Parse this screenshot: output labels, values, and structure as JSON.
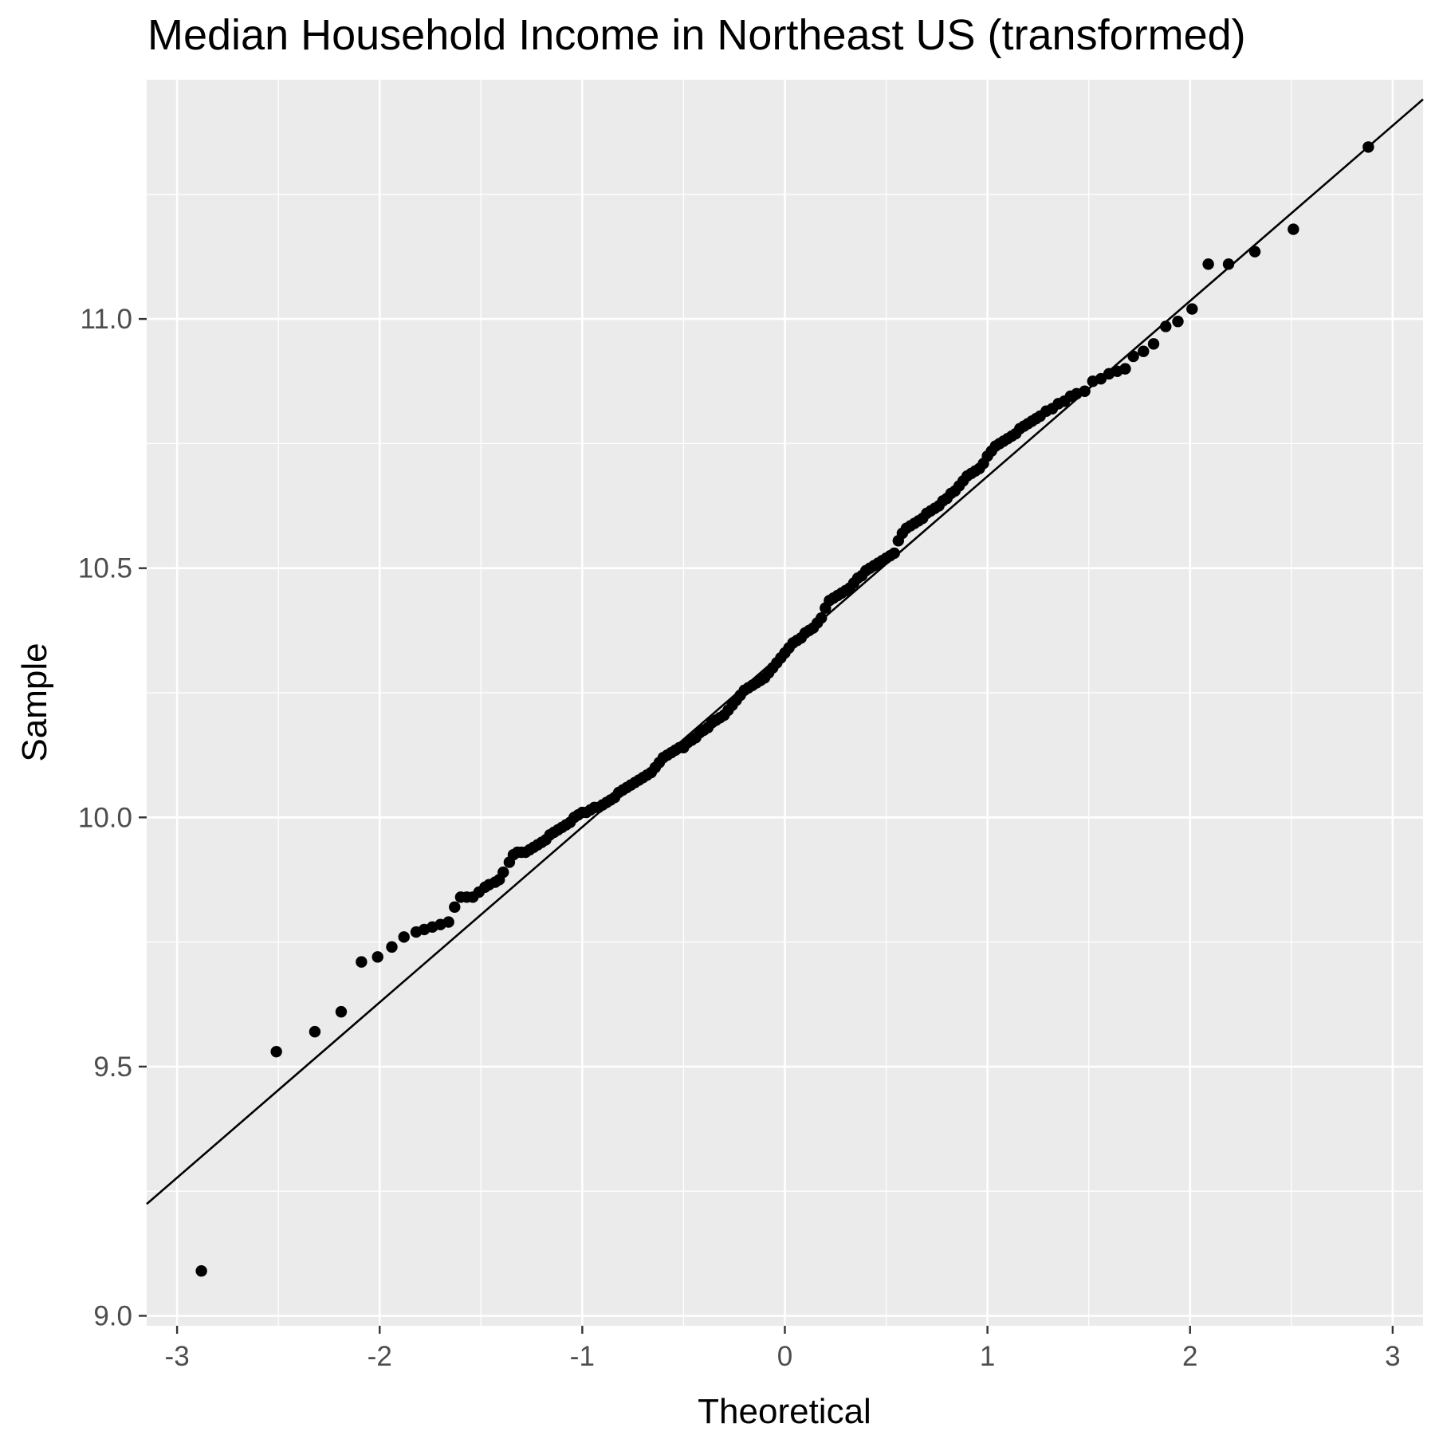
{
  "chart_data": {
    "type": "scatter",
    "title": "Median Household Income in Northeast US (transformed)",
    "xlabel": "Theoretical",
    "ylabel": "Sample",
    "xlim": [
      -3.15,
      3.15
    ],
    "ylim": [
      8.98,
      11.48
    ],
    "x_ticks": [
      -3,
      -2,
      -1,
      0,
      1,
      2,
      3
    ],
    "x_tick_labels": [
      "-3",
      "-2",
      "-1",
      "0",
      "1",
      "2",
      "3"
    ],
    "y_ticks": [
      9.0,
      9.5,
      10.0,
      10.5,
      11.0
    ],
    "y_tick_labels": [
      "9.0",
      "9.5",
      "10.0",
      "10.5",
      "11.0"
    ],
    "grid": true,
    "panel_background": "#ebebeb",
    "grid_color": "#ffffff",
    "point_color": "#000000",
    "reference_line": {
      "slope": 0.3518,
      "intercept": 10.3325
    },
    "series": [
      {
        "points": [
          [
            -2.88,
            9.09
          ],
          [
            -2.51,
            9.53
          ],
          [
            -2.32,
            9.57
          ],
          [
            -2.19,
            9.61
          ],
          [
            -2.09,
            9.71
          ],
          [
            -2.01,
            9.72
          ],
          [
            -1.94,
            9.74
          ],
          [
            -1.88,
            9.76
          ],
          [
            -1.82,
            9.77
          ],
          [
            -1.78,
            9.775
          ],
          [
            -1.74,
            9.78
          ],
          [
            -1.7,
            9.785
          ],
          [
            -1.66,
            9.79
          ],
          [
            -1.63,
            9.82
          ],
          [
            -1.6,
            9.84
          ],
          [
            -1.57,
            9.84
          ],
          [
            -1.54,
            9.84
          ],
          [
            -1.51,
            9.85
          ],
          [
            -1.48,
            9.86
          ],
          [
            -1.46,
            9.865
          ],
          [
            -1.43,
            9.87
          ],
          [
            -1.41,
            9.875
          ],
          [
            -1.39,
            9.89
          ],
          [
            -1.36,
            9.91
          ],
          [
            -1.34,
            9.925
          ],
          [
            -1.32,
            9.93
          ],
          [
            -1.3,
            9.93
          ],
          [
            -1.28,
            9.93
          ],
          [
            -1.26,
            9.935
          ],
          [
            -1.24,
            9.94
          ],
          [
            -1.22,
            9.945
          ],
          [
            -1.2,
            9.95
          ],
          [
            -1.18,
            9.955
          ],
          [
            -1.16,
            9.965
          ],
          [
            -1.14,
            9.97
          ],
          [
            -1.12,
            9.975
          ],
          [
            -1.1,
            9.98
          ],
          [
            -1.08,
            9.985
          ],
          [
            -1.06,
            9.99
          ],
          [
            -1.04,
            10.0
          ],
          [
            -1.02,
            10.005
          ],
          [
            -1.0,
            10.01
          ],
          [
            -0.98,
            10.01
          ],
          [
            -0.96,
            10.015
          ],
          [
            -0.94,
            10.02
          ],
          [
            -0.92,
            10.02
          ],
          [
            -0.9,
            10.025
          ],
          [
            -0.88,
            10.03
          ],
          [
            -0.86,
            10.035
          ],
          [
            -0.84,
            10.04
          ],
          [
            -0.82,
            10.05
          ],
          [
            -0.8,
            10.055
          ],
          [
            -0.78,
            10.06
          ],
          [
            -0.76,
            10.065
          ],
          [
            -0.74,
            10.07
          ],
          [
            -0.72,
            10.075
          ],
          [
            -0.7,
            10.08
          ],
          [
            -0.68,
            10.085
          ],
          [
            -0.66,
            10.09
          ],
          [
            -0.64,
            10.1
          ],
          [
            -0.62,
            10.11
          ],
          [
            -0.6,
            10.12
          ],
          [
            -0.58,
            10.125
          ],
          [
            -0.56,
            10.13
          ],
          [
            -0.54,
            10.135
          ],
          [
            -0.52,
            10.14
          ],
          [
            -0.5,
            10.14
          ],
          [
            -0.48,
            10.15
          ],
          [
            -0.46,
            10.155
          ],
          [
            -0.44,
            10.16
          ],
          [
            -0.42,
            10.17
          ],
          [
            -0.4,
            10.175
          ],
          [
            -0.38,
            10.18
          ],
          [
            -0.36,
            10.19
          ],
          [
            -0.34,
            10.195
          ],
          [
            -0.32,
            10.2
          ],
          [
            -0.3,
            10.205
          ],
          [
            -0.28,
            10.215
          ],
          [
            -0.26,
            10.225
          ],
          [
            -0.24,
            10.235
          ],
          [
            -0.22,
            10.245
          ],
          [
            -0.2,
            10.255
          ],
          [
            -0.18,
            10.26
          ],
          [
            -0.16,
            10.265
          ],
          [
            -0.14,
            10.27
          ],
          [
            -0.12,
            10.275
          ],
          [
            -0.1,
            10.28
          ],
          [
            -0.08,
            10.29
          ],
          [
            -0.06,
            10.3
          ],
          [
            -0.04,
            10.31
          ],
          [
            -0.02,
            10.32
          ],
          [
            0.0,
            10.33
          ],
          [
            0.02,
            10.34
          ],
          [
            0.04,
            10.35
          ],
          [
            0.06,
            10.355
          ],
          [
            0.08,
            10.36
          ],
          [
            0.1,
            10.37
          ],
          [
            0.12,
            10.375
          ],
          [
            0.14,
            10.38
          ],
          [
            0.16,
            10.39
          ],
          [
            0.18,
            10.4
          ],
          [
            0.2,
            10.42
          ],
          [
            0.22,
            10.435
          ],
          [
            0.24,
            10.44
          ],
          [
            0.26,
            10.445
          ],
          [
            0.28,
            10.45
          ],
          [
            0.3,
            10.455
          ],
          [
            0.32,
            10.46
          ],
          [
            0.34,
            10.47
          ],
          [
            0.36,
            10.48
          ],
          [
            0.38,
            10.485
          ],
          [
            0.4,
            10.495
          ],
          [
            0.42,
            10.5
          ],
          [
            0.44,
            10.505
          ],
          [
            0.46,
            10.51
          ],
          [
            0.48,
            10.515
          ],
          [
            0.5,
            10.52
          ],
          [
            0.52,
            10.525
          ],
          [
            0.54,
            10.53
          ],
          [
            0.56,
            10.555
          ],
          [
            0.58,
            10.57
          ],
          [
            0.6,
            10.58
          ],
          [
            0.62,
            10.585
          ],
          [
            0.64,
            10.59
          ],
          [
            0.66,
            10.595
          ],
          [
            0.68,
            10.6
          ],
          [
            0.7,
            10.61
          ],
          [
            0.72,
            10.615
          ],
          [
            0.74,
            10.62
          ],
          [
            0.76,
            10.625
          ],
          [
            0.78,
            10.635
          ],
          [
            0.8,
            10.64
          ],
          [
            0.82,
            10.65
          ],
          [
            0.84,
            10.655
          ],
          [
            0.86,
            10.665
          ],
          [
            0.88,
            10.675
          ],
          [
            0.9,
            10.685
          ],
          [
            0.92,
            10.69
          ],
          [
            0.94,
            10.695
          ],
          [
            0.96,
            10.7
          ],
          [
            0.98,
            10.71
          ],
          [
            1.0,
            10.725
          ],
          [
            1.02,
            10.735
          ],
          [
            1.04,
            10.745
          ],
          [
            1.06,
            10.75
          ],
          [
            1.08,
            10.755
          ],
          [
            1.1,
            10.76
          ],
          [
            1.12,
            10.765
          ],
          [
            1.14,
            10.77
          ],
          [
            1.16,
            10.78
          ],
          [
            1.18,
            10.785
          ],
          [
            1.2,
            10.79
          ],
          [
            1.22,
            10.795
          ],
          [
            1.24,
            10.8
          ],
          [
            1.26,
            10.805
          ],
          [
            1.29,
            10.815
          ],
          [
            1.32,
            10.82
          ],
          [
            1.35,
            10.83
          ],
          [
            1.38,
            10.835
          ],
          [
            1.41,
            10.845
          ],
          [
            1.44,
            10.85
          ],
          [
            1.48,
            10.855
          ],
          [
            1.52,
            10.875
          ],
          [
            1.56,
            10.88
          ],
          [
            1.6,
            10.89
          ],
          [
            1.64,
            10.895
          ],
          [
            1.68,
            10.9
          ],
          [
            1.72,
            10.925
          ],
          [
            1.77,
            10.935
          ],
          [
            1.82,
            10.95
          ],
          [
            1.88,
            10.985
          ],
          [
            1.94,
            10.995
          ],
          [
            2.01,
            11.02
          ],
          [
            2.09,
            11.11
          ],
          [
            2.19,
            11.11
          ],
          [
            2.32,
            11.135
          ],
          [
            2.51,
            11.18
          ],
          [
            2.88,
            11.345
          ]
        ]
      }
    ]
  }
}
